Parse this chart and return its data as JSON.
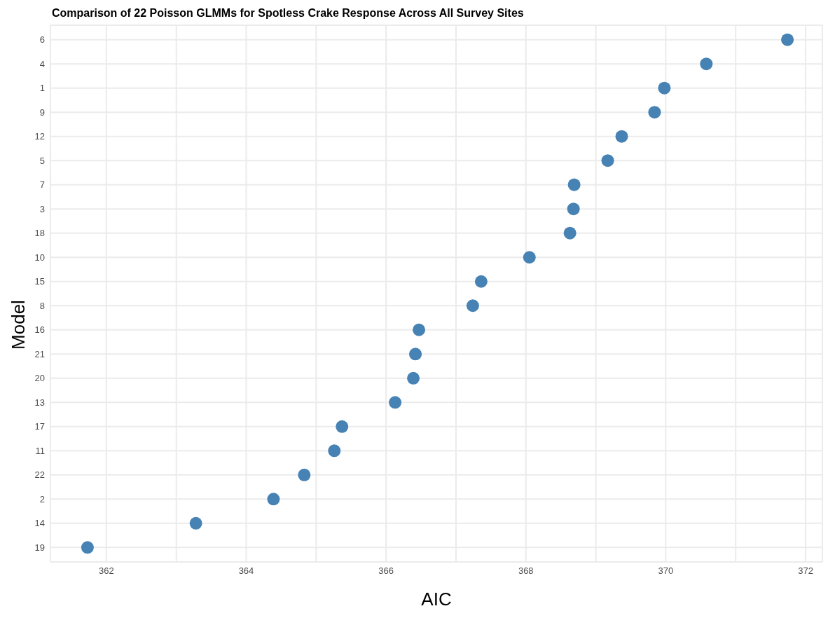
{
  "chart_data": {
    "type": "scatter",
    "title": "Comparison of 22 Poisson GLMMs for Spotless Crake Response Across All Survey Sites",
    "xlabel": "AIC",
    "ylabel": "Model",
    "categories": [
      "6",
      "4",
      "1",
      "9",
      "12",
      "5",
      "7",
      "3",
      "18",
      "10",
      "15",
      "8",
      "16",
      "21",
      "20",
      "13",
      "17",
      "11",
      "22",
      "2",
      "14",
      "19"
    ],
    "orientation": "horizontal",
    "values": [
      371.74,
      370.58,
      369.98,
      369.84,
      369.37,
      369.17,
      368.69,
      368.68,
      368.63,
      368.05,
      367.36,
      367.24,
      366.47,
      366.42,
      366.39,
      366.13,
      365.37,
      365.26,
      364.83,
      364.39,
      363.28,
      361.73
    ],
    "color": "#4682b4",
    "xlim": [
      361.2,
      372.24
    ],
    "xticks": [
      362,
      {
        "value": 363,
        "label": null
      },
      364,
      {
        "value": 365,
        "label": null
      },
      366,
      {
        "value": 367,
        "label": null
      },
      368,
      {
        "value": 369,
        "label": null
      },
      370,
      {
        "value": 371,
        "label": null
      },
      372
    ],
    "grid": true,
    "marker": "circle"
  }
}
